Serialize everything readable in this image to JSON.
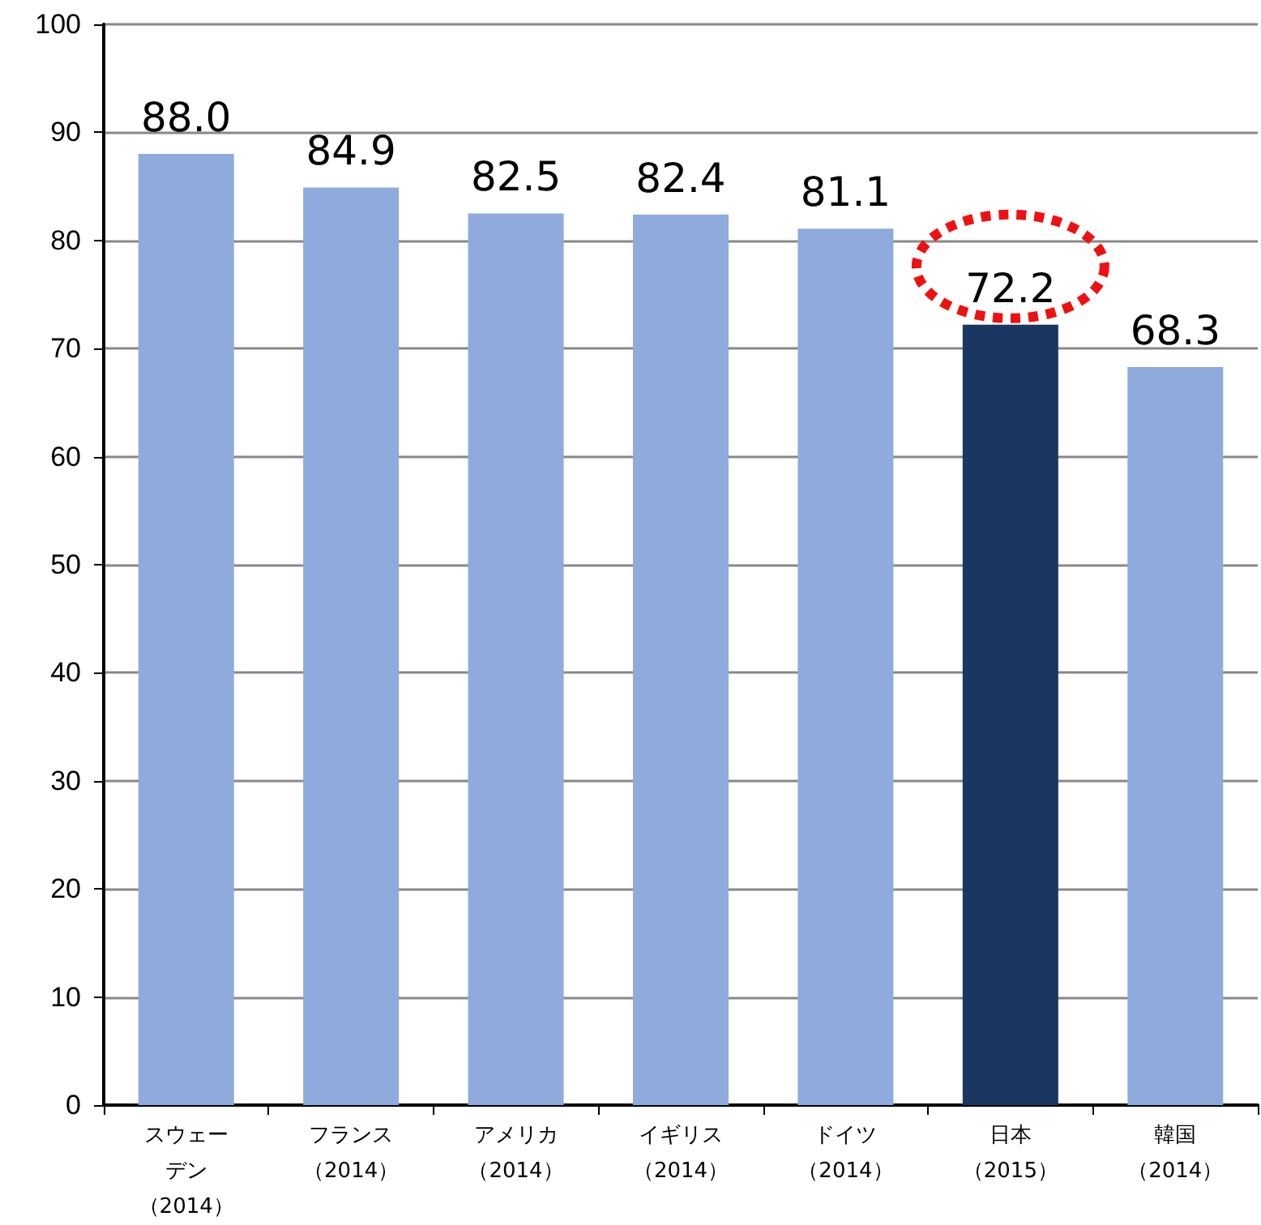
{
  "chart_data": {
    "type": "bar",
    "categories": [
      "スウェーデン（2014）",
      "フランス（2014）",
      "アメリカ（2014）",
      "イギリス（2014）",
      "ドイツ（2014）",
      "日本（2015）",
      "韓国（2014）"
    ],
    "values": [
      88.0,
      84.9,
      82.5,
      82.4,
      81.1,
      72.2,
      68.3
    ],
    "colors": [
      "#8faadc",
      "#8faadc",
      "#8faadc",
      "#8faadc",
      "#8faadc",
      "#1a3761",
      "#8faadc"
    ],
    "value_labels": [
      "88.0",
      "84.9",
      "82.5",
      "82.4",
      "81.1",
      "72.2",
      "68.3"
    ],
    "ylim": [
      0,
      100
    ],
    "yticks": [
      0,
      10,
      20,
      30,
      40,
      50,
      60,
      70,
      80,
      90,
      100
    ],
    "grid": "y"
  }
}
